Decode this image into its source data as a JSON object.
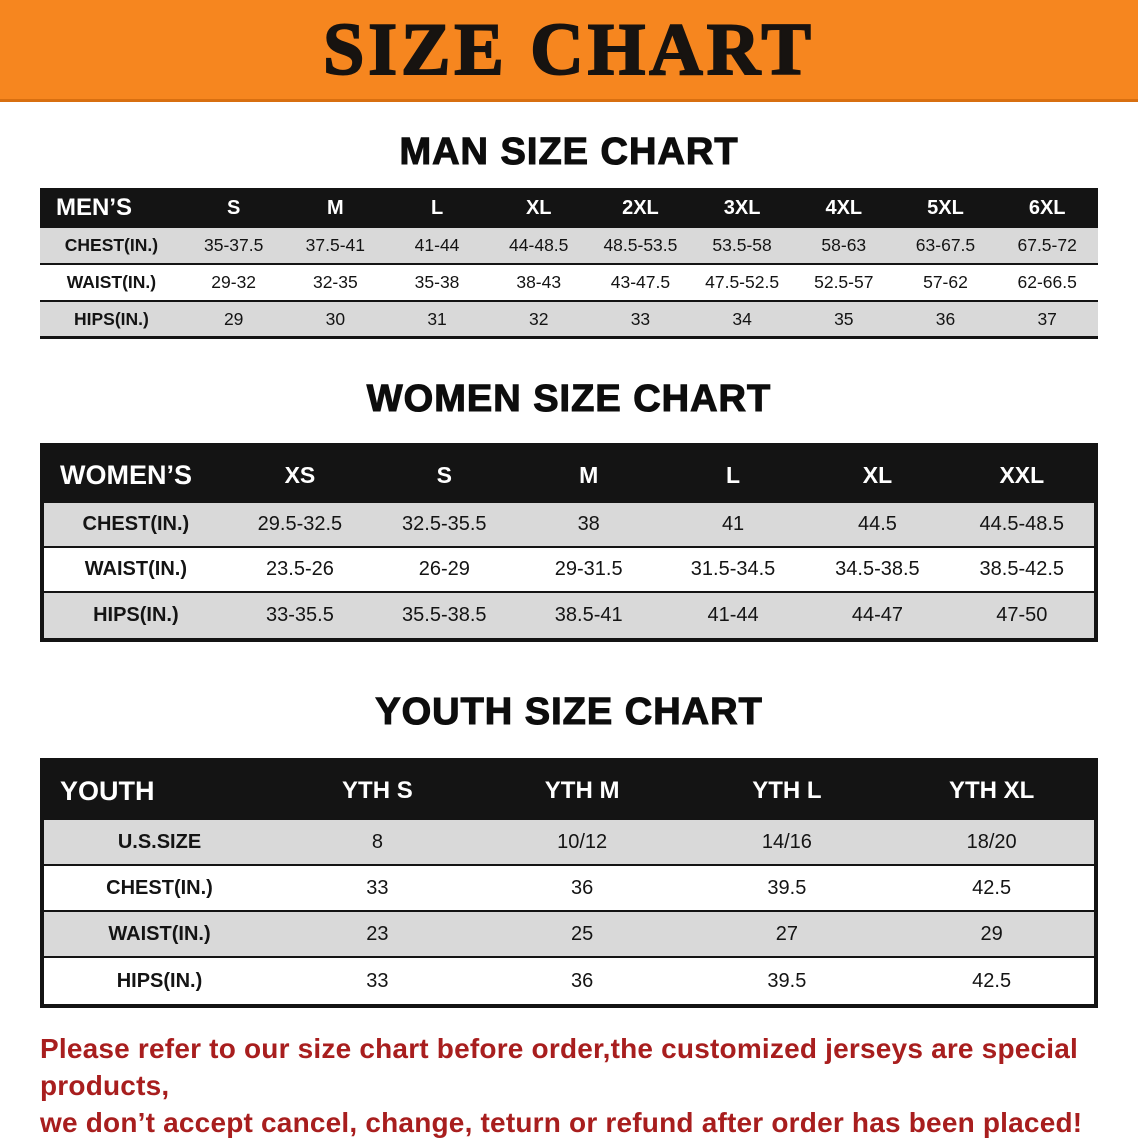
{
  "banner": {
    "title": "SIZE CHART"
  },
  "colors": {
    "banner_bg": "#f6861f",
    "header_bg": "#141414",
    "row_shade": "#d9d9d9",
    "disclaimer_red": "#a81e1e"
  },
  "sections": [
    {
      "id": "men",
      "heading": "MAN SIZE CHART",
      "table": {
        "header": [
          "MEN’S",
          "S",
          "M",
          "L",
          "XL",
          "2XL",
          "3XL",
          "4XL",
          "5XL",
          "6XL"
        ],
        "rows": [
          [
            "CHEST(IN.)",
            "35-37.5",
            "37.5-41",
            "41-44",
            "44-48.5",
            "48.5-53.5",
            "53.5-58",
            "58-63",
            "63-67.5",
            "67.5-72"
          ],
          [
            "WAIST(IN.)",
            "29-32",
            "32-35",
            "35-38",
            "38-43",
            "43-47.5",
            "47.5-52.5",
            "52.5-57",
            "57-62",
            "62-66.5"
          ],
          [
            "HIPS(IN.)",
            "29",
            "30",
            "31",
            "32",
            "33",
            "34",
            "35",
            "36",
            "37"
          ]
        ]
      }
    },
    {
      "id": "women",
      "heading": "WOMEN SIZE CHART",
      "table": {
        "header": [
          "WOMEN’S",
          "XS",
          "S",
          "M",
          "L",
          "XL",
          "XXL"
        ],
        "rows": [
          [
            "CHEST(IN.)",
            "29.5-32.5",
            "32.5-35.5",
            "38",
            "41",
            "44.5",
            "44.5-48.5"
          ],
          [
            "WAIST(IN.)",
            "23.5-26",
            "26-29",
            "29-31.5",
            "31.5-34.5",
            "34.5-38.5",
            "38.5-42.5"
          ],
          [
            "HIPS(IN.)",
            "33-35.5",
            "35.5-38.5",
            "38.5-41",
            "41-44",
            "44-47",
            "47-50"
          ]
        ]
      }
    },
    {
      "id": "youth",
      "heading": "YOUTH SIZE CHART",
      "table": {
        "header": [
          "YOUTH",
          "YTH S",
          "YTH M",
          "YTH L",
          "YTH XL"
        ],
        "rows": [
          [
            "U.S.SIZE",
            "8",
            "10/12",
            "14/16",
            "18/20"
          ],
          [
            "CHEST(IN.)",
            "33",
            "36",
            "39.5",
            "42.5"
          ],
          [
            "WAIST(IN.)",
            "23",
            "25",
            "27",
            "29"
          ],
          [
            "HIPS(IN.)",
            "33",
            "36",
            "39.5",
            "42.5"
          ]
        ]
      }
    }
  ],
  "disclaimer": {
    "line1": "Please refer to our size chart before order,the customized jerseys are special products,",
    "line2": "we don’t accept cancel, change, teturn or refund after order has been placed!"
  }
}
